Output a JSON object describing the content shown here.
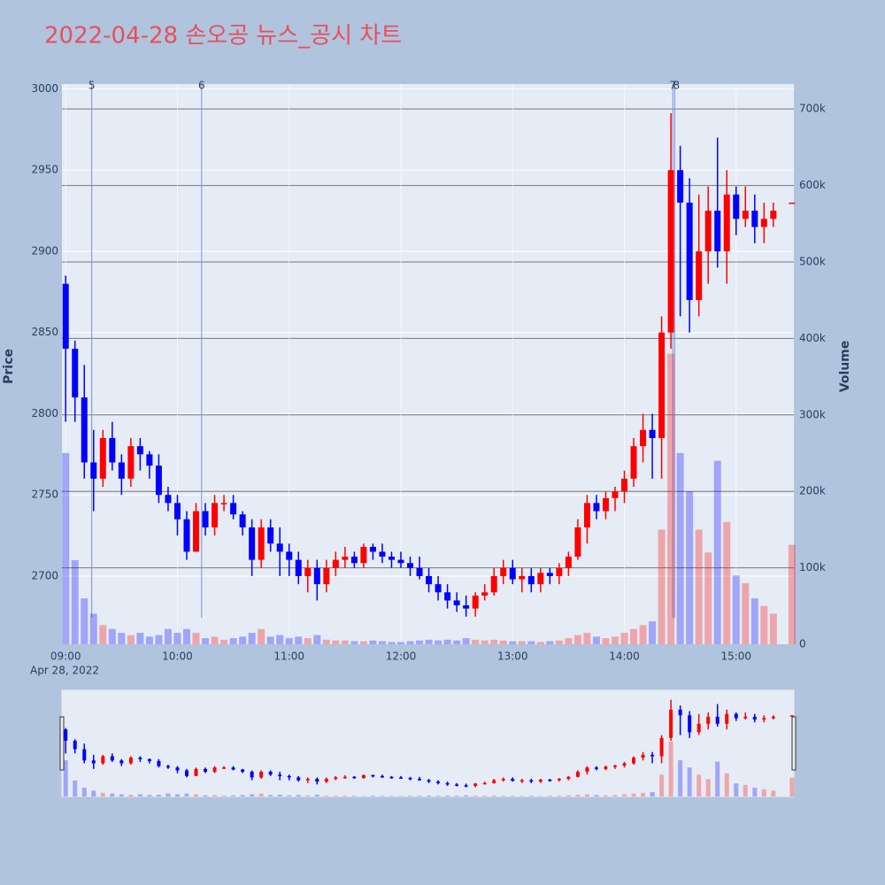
{
  "chart_data": {
    "type": "candlestick",
    "title": "2022-04-28 손오공 뉴스_공시 차트",
    "y_title": "Price",
    "y2_title": "Volume",
    "x_date_label": "Apr 28, 2022",
    "increasing_color": "#ff0000",
    "decreasing_color": "#0000ff",
    "xlim": [
      "08:58",
      "15:31"
    ],
    "xticks": [
      "09:00",
      "10:00",
      "11:00",
      "12:00",
      "13:00",
      "14:00",
      "15:00"
    ],
    "ylim": [
      2658,
      3003
    ],
    "yticks": [
      2700,
      2750,
      2800,
      2850,
      2900,
      2950,
      3000
    ],
    "y2lim": [
      0,
      732600
    ],
    "y2ticks": [
      0,
      {
        "value": 100000,
        "label": "100k"
      },
      {
        "value": 200000,
        "label": "200k"
      },
      {
        "value": 300000,
        "label": "300k"
      },
      {
        "value": 400000,
        "label": "400k"
      },
      {
        "value": 500000,
        "label": "500k"
      },
      {
        "value": 600000,
        "label": "600k"
      },
      {
        "value": 700000,
        "label": "700k"
      }
    ],
    "markers": [
      {
        "x": "09:14",
        "label": "5"
      },
      {
        "x": "10:13",
        "label": "6"
      },
      {
        "x": "14:26",
        "label": "7"
      },
      {
        "x": "14:27",
        "label": "8"
      }
    ],
    "x": [
      "09:00",
      "09:05",
      "09:10",
      "09:15",
      "09:20",
      "09:25",
      "09:30",
      "09:35",
      "09:40",
      "09:45",
      "09:50",
      "09:55",
      "10:00",
      "10:05",
      "10:10",
      "10:15",
      "10:20",
      "10:25",
      "10:30",
      "10:35",
      "10:40",
      "10:45",
      "10:50",
      "10:55",
      "11:00",
      "11:05",
      "11:10",
      "11:15",
      "11:20",
      "11:25",
      "11:30",
      "11:35",
      "11:40",
      "11:45",
      "11:50",
      "11:55",
      "12:00",
      "12:05",
      "12:10",
      "12:15",
      "12:20",
      "12:25",
      "12:30",
      "12:35",
      "12:40",
      "12:45",
      "12:50",
      "12:55",
      "13:00",
      "13:05",
      "13:10",
      "13:15",
      "13:20",
      "13:25",
      "13:30",
      "13:35",
      "13:40",
      "13:45",
      "13:50",
      "13:55",
      "14:00",
      "14:05",
      "14:10",
      "14:15",
      "14:20",
      "14:25",
      "14:30",
      "14:35",
      "14:40",
      "14:45",
      "14:50",
      "14:55",
      "15:00",
      "15:05",
      "15:10",
      "15:15",
      "15:20",
      "15:30"
    ],
    "open": [
      2880,
      2840,
      2810,
      2770,
      2760,
      2785,
      2770,
      2760,
      2780,
      2775,
      2768,
      2750,
      2745,
      2735,
      2715,
      2740,
      2730,
      2745,
      2745,
      2738,
      2730,
      2710,
      2730,
      2720,
      2715,
      2710,
      2700,
      2705,
      2695,
      2705,
      2710,
      2712,
      2708,
      2718,
      2715,
      2712,
      2710,
      2708,
      2705,
      2700,
      2695,
      2690,
      2685,
      2682,
      2680,
      2688,
      2690,
      2700,
      2705,
      2698,
      2700,
      2695,
      2702,
      2700,
      2705,
      2712,
      2730,
      2745,
      2740,
      2748,
      2752,
      2760,
      2780,
      2790,
      2785,
      2850,
      2950,
      2930,
      2870,
      2900,
      2925,
      2900,
      2935,
      2920,
      2925,
      2915,
      2920,
      2930
    ],
    "high": [
      2885,
      2845,
      2830,
      2790,
      2790,
      2795,
      2775,
      2785,
      2785,
      2777,
      2775,
      2755,
      2750,
      2740,
      2745,
      2745,
      2750,
      2750,
      2750,
      2740,
      2735,
      2735,
      2735,
      2730,
      2720,
      2715,
      2710,
      2710,
      2710,
      2715,
      2718,
      2715,
      2720,
      2720,
      2720,
      2715,
      2715,
      2712,
      2712,
      2705,
      2700,
      2695,
      2690,
      2688,
      2690,
      2695,
      2705,
      2710,
      2710,
      2705,
      2705,
      2705,
      2705,
      2708,
      2715,
      2735,
      2750,
      2750,
      2752,
      2755,
      2765,
      2785,
      2800,
      2800,
      2860,
      2985,
      2965,
      2945,
      2935,
      2940,
      2970,
      2950,
      2940,
      2940,
      2935,
      2930,
      2930,
      2930
    ],
    "low": [
      2795,
      2795,
      2760,
      2740,
      2755,
      2765,
      2750,
      2755,
      2765,
      2760,
      2745,
      2740,
      2725,
      2710,
      2715,
      2725,
      2725,
      2740,
      2735,
      2725,
      2700,
      2705,
      2715,
      2700,
      2700,
      2695,
      2690,
      2685,
      2690,
      2700,
      2705,
      2705,
      2705,
      2710,
      2708,
      2705,
      2705,
      2700,
      2698,
      2690,
      2685,
      2680,
      2678,
      2675,
      2675,
      2685,
      2688,
      2695,
      2695,
      2690,
      2690,
      2690,
      2695,
      2695,
      2700,
      2710,
      2720,
      2735,
      2735,
      2740,
      2745,
      2755,
      2770,
      2760,
      2760,
      2840,
      2860,
      2850,
      2860,
      2880,
      2890,
      2880,
      2910,
      2915,
      2905,
      2905,
      2915,
      2930
    ],
    "close": [
      2840,
      2810,
      2770,
      2760,
      2785,
      2770,
      2760,
      2780,
      2775,
      2768,
      2750,
      2745,
      2735,
      2715,
      2740,
      2730,
      2745,
      2745,
      2738,
      2730,
      2710,
      2730,
      2720,
      2715,
      2710,
      2700,
      2705,
      2695,
      2705,
      2710,
      2712,
      2708,
      2718,
      2715,
      2712,
      2710,
      2708,
      2705,
      2700,
      2695,
      2690,
      2685,
      2682,
      2680,
      2688,
      2690,
      2700,
      2705,
      2698,
      2700,
      2695,
      2702,
      2700,
      2705,
      2712,
      2730,
      2745,
      2740,
      2748,
      2752,
      2760,
      2780,
      2790,
      2785,
      2850,
      2950,
      2930,
      2870,
      2900,
      2925,
      2900,
      2935,
      2920,
      2925,
      2915,
      2920,
      2925,
      2930
    ],
    "volume": [
      250000,
      110000,
      60000,
      40000,
      25000,
      20000,
      15000,
      12000,
      15000,
      10000,
      12000,
      20000,
      15000,
      20000,
      15000,
      8000,
      10000,
      6000,
      8000,
      10000,
      15000,
      20000,
      10000,
      12000,
      8000,
      10000,
      8000,
      12000,
      6000,
      5000,
      5000,
      4000,
      4000,
      5000,
      4000,
      3000,
      3000,
      4000,
      5000,
      6000,
      5000,
      6000,
      5000,
      8000,
      6000,
      5000,
      6000,
      5000,
      4000,
      4000,
      4000,
      3000,
      4000,
      5000,
      8000,
      12000,
      15000,
      10000,
      8000,
      10000,
      15000,
      20000,
      25000,
      30000,
      150000,
      380000,
      250000,
      200000,
      150000,
      120000,
      240000,
      160000,
      90000,
      80000,
      60000,
      50000,
      40000,
      130000
    ]
  }
}
